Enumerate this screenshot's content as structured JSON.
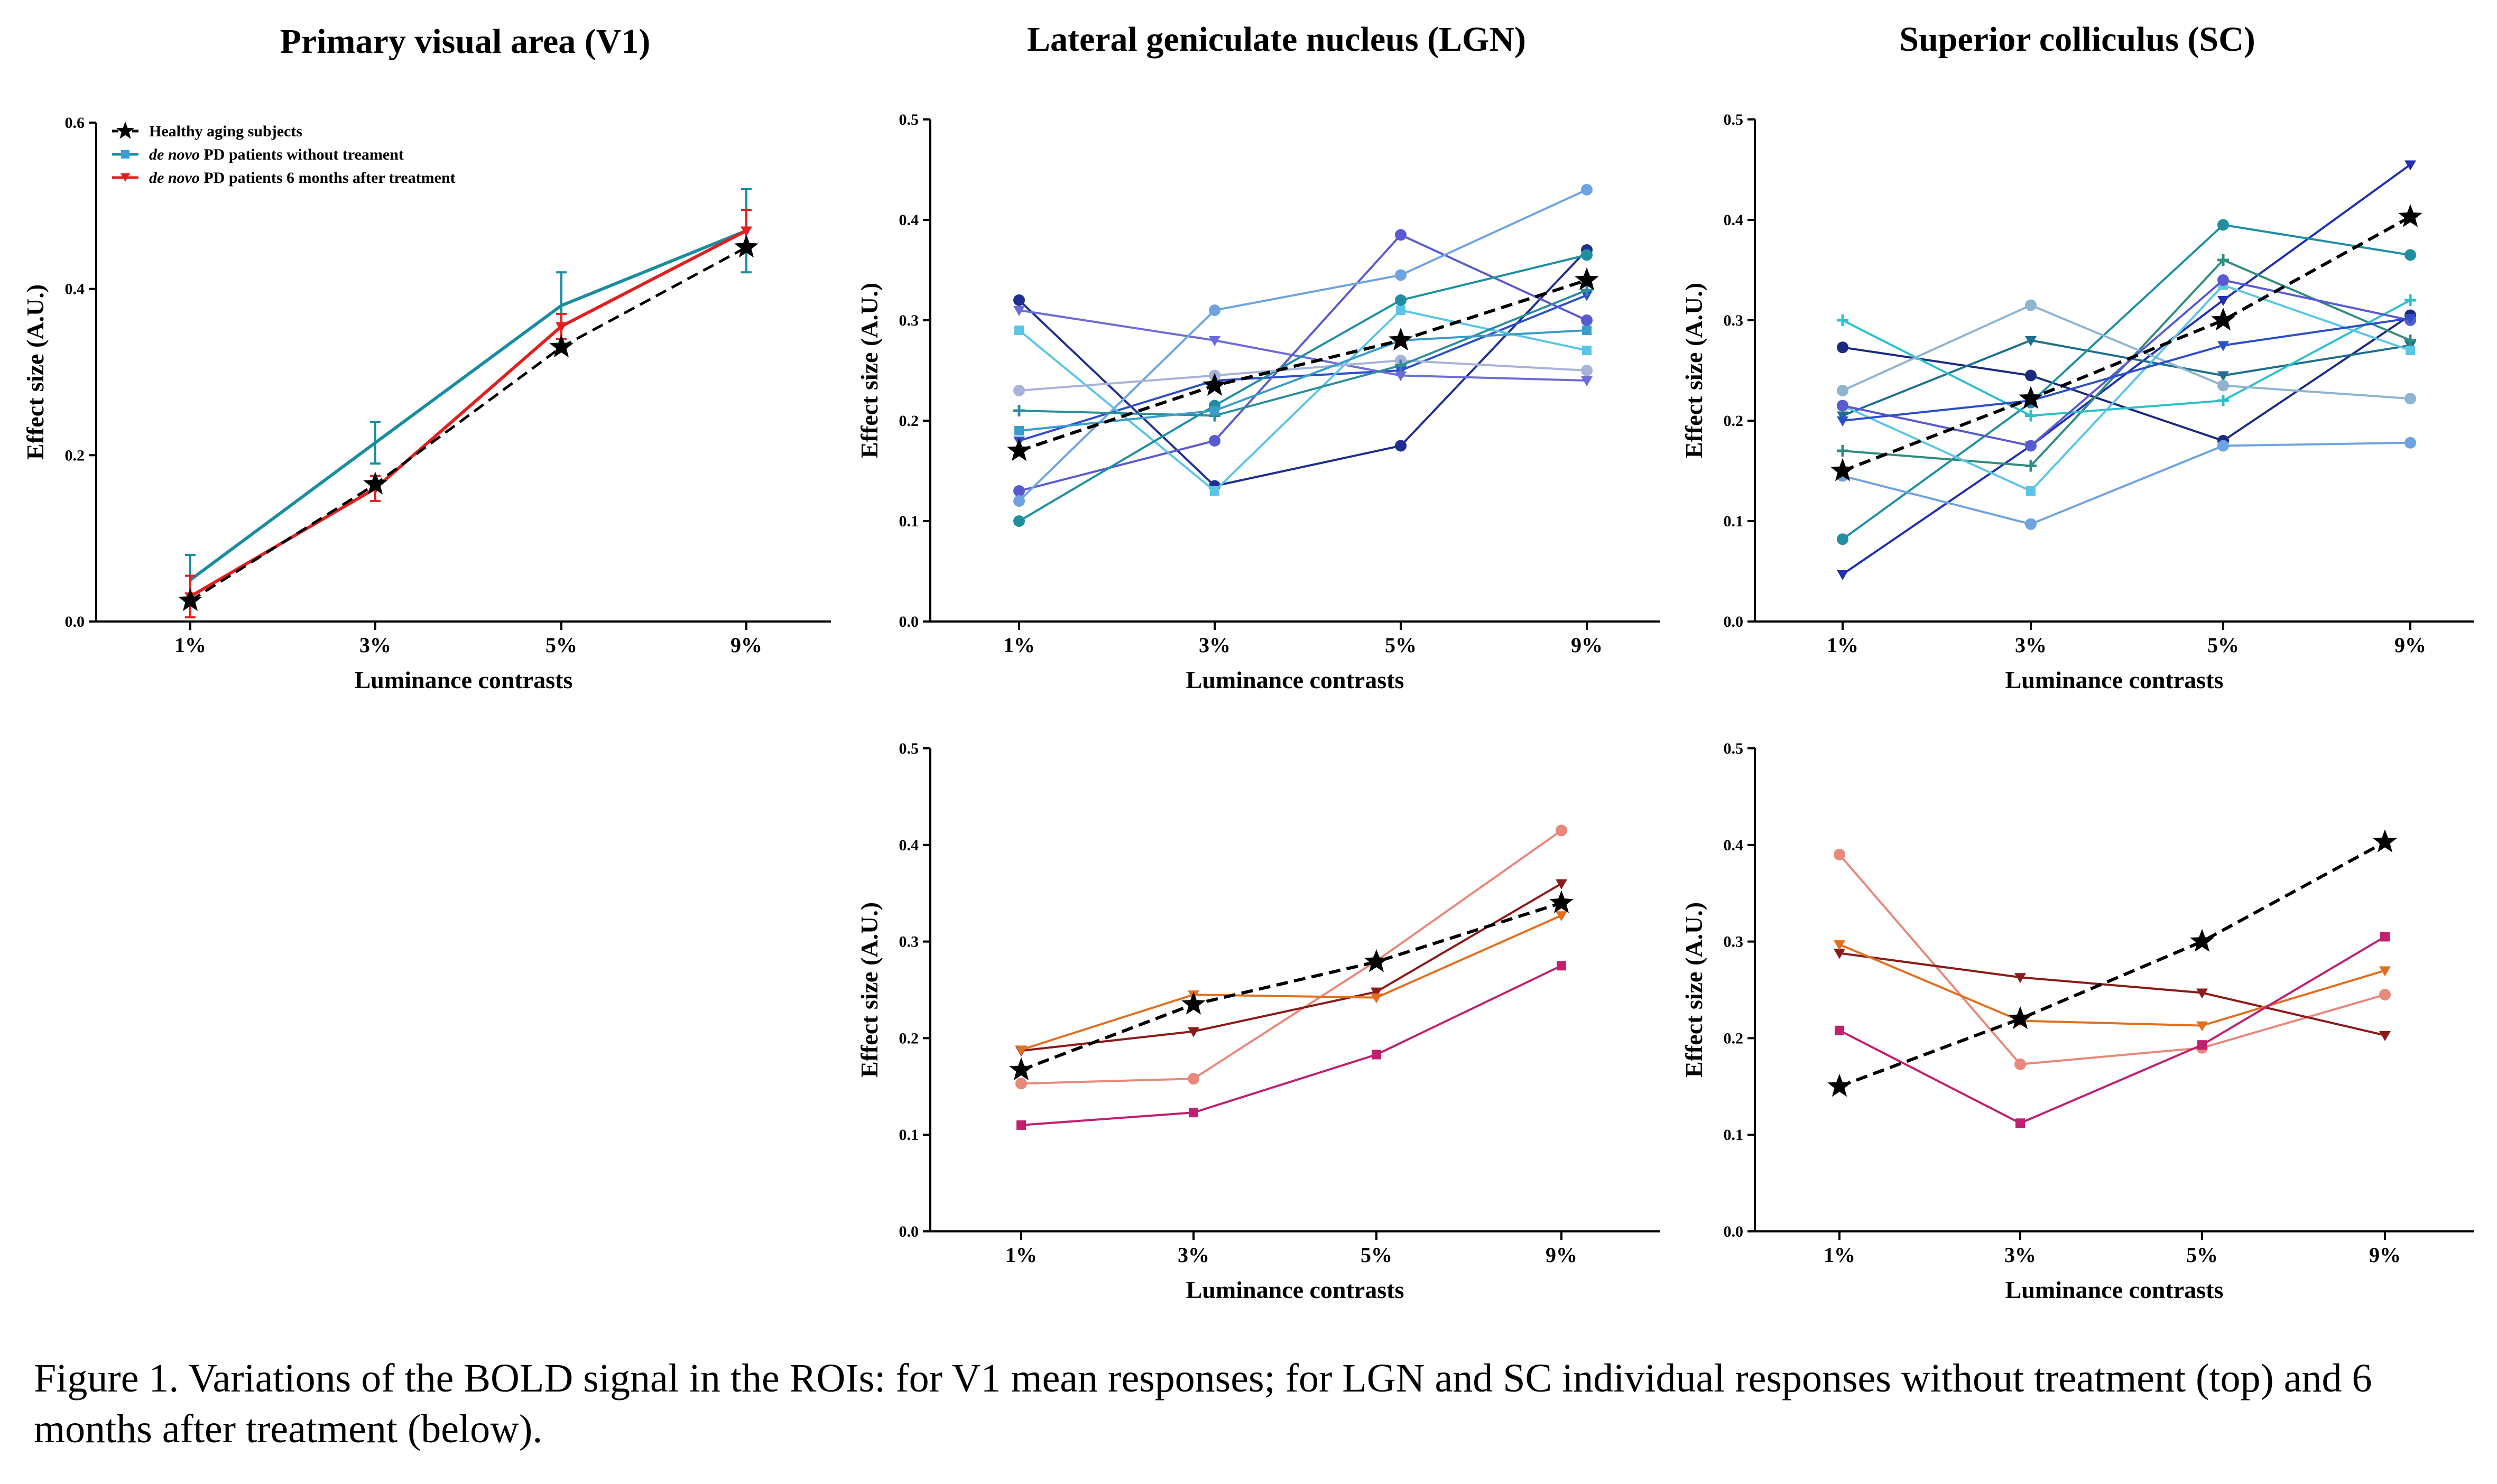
{
  "colors": {
    "axis": "#000000",
    "healthy": "#000000",
    "untreated": "#1a8ca0",
    "treated": "#e02020"
  },
  "figure_titles": {
    "v1": "Primary visual area (V1)",
    "lgn": "Lateral geniculate nucleus (LGN)",
    "sc": "Superior colliculus (SC)"
  },
  "legend": {
    "healthy": "Healthy aging subjects",
    "untreated_prefix": "de novo",
    "untreated_rest": " PD patients without treament",
    "treated_prefix": "de novo",
    "treated_rest": " PD patients 6 months after treatment"
  },
  "caption": "Figure 1. Variations of the BOLD signal in the ROIs: for V1 mean responses; for LGN and SC individual responses without treatment (top) and 6 months after treatment (below).",
  "chart_data": [
    {
      "id": "v1",
      "type": "line",
      "title": "Primary visual area (V1)",
      "xlabel": "Luminance contrasts",
      "ylabel": "Effect size (A.U.)",
      "categories": [
        "1%",
        "3%",
        "5%",
        "9%"
      ],
      "ylim": [
        0,
        0.6
      ],
      "yticks": [
        0.0,
        0.2,
        0.4,
        0.6
      ],
      "ytick_labels": [
        "0.0",
        "0.2",
        "0.4",
        "0.6"
      ],
      "legend_position": "top-left",
      "series": [
        {
          "name": "de novo PD patients without treament",
          "color": "#1a8ca0",
          "width": 6,
          "marker": "none",
          "values": [
            0.05,
            0.215,
            0.38,
            0.47
          ],
          "errors": [
            0.03,
            0.025,
            0.04,
            0.05
          ]
        },
        {
          "name": "de novo PD patients 6 months after treatment",
          "color": "#e02020",
          "width": 6,
          "marker": "tri",
          "values": [
            0.03,
            0.16,
            0.355,
            0.47
          ],
          "errors": [
            0.025,
            0.015,
            0.015,
            0.025
          ]
        },
        {
          "name": "Healthy aging subjects",
          "color": "#000000",
          "width": 5,
          "dash": true,
          "marker": "star",
          "values": [
            0.025,
            0.165,
            0.33,
            0.45
          ]
        }
      ]
    },
    {
      "id": "lgn-top",
      "type": "line",
      "xlabel": "Luminance contrasts",
      "ylabel": "Effect size (A.U.)",
      "categories": [
        "1%",
        "3%",
        "5%",
        "9%"
      ],
      "ylim": [
        0,
        0.5
      ],
      "yticks": [
        0.0,
        0.1,
        0.2,
        0.3,
        0.4,
        0.5
      ],
      "ytick_labels": [
        "0.0",
        "0.1",
        "0.2",
        "0.3",
        "0.4",
        "0.5"
      ],
      "series": [
        {
          "color": "#1f2f8f",
          "marker": "dot",
          "values": [
            0.32,
            0.135,
            0.175,
            0.37
          ]
        },
        {
          "color": "#2d4fc8",
          "marker": "tri",
          "values": [
            0.18,
            0.24,
            0.25,
            0.325
          ]
        },
        {
          "color": "#6c6cd8",
          "marker": "tri",
          "values": [
            0.31,
            0.28,
            0.245,
            0.24
          ]
        },
        {
          "color": "#5a5ad0",
          "marker": "dot",
          "values": [
            0.13,
            0.18,
            0.385,
            0.3
          ]
        },
        {
          "color": "#6fa3e0",
          "marker": "dot",
          "values": [
            0.12,
            0.31,
            0.345,
            0.43
          ]
        },
        {
          "color": "#5bc5e6",
          "marker": "sq",
          "values": [
            0.29,
            0.13,
            0.31,
            0.27
          ]
        },
        {
          "color": "#1f8fa0",
          "marker": "dot",
          "values": [
            0.1,
            0.215,
            0.32,
            0.365
          ]
        },
        {
          "color": "#a6b4d8",
          "marker": "dot",
          "values": [
            0.23,
            0.245,
            0.26,
            0.25
          ]
        },
        {
          "color": "#2d8c9c",
          "marker": "cross",
          "values": [
            0.21,
            0.205,
            0.255,
            0.33
          ]
        },
        {
          "color": "#3a9cc8",
          "marker": "sq",
          "values": [
            0.19,
            0.21,
            0.28,
            0.29
          ]
        },
        {
          "color": "#000000",
          "width": 6,
          "dash": true,
          "marker": "star",
          "values": [
            0.17,
            0.235,
            0.28,
            0.34
          ]
        }
      ]
    },
    {
      "id": "sc-top",
      "type": "line",
      "xlabel": "Luminance contrasts",
      "ylabel": "Effect size (A.U.)",
      "categories": [
        "1%",
        "3%",
        "5%",
        "9%"
      ],
      "ylim": [
        0,
        0.5
      ],
      "yticks": [
        0.0,
        0.1,
        0.2,
        0.3,
        0.4,
        0.5
      ],
      "ytick_labels": [
        "0.0",
        "0.1",
        "0.2",
        "0.3",
        "0.4",
        "0.5"
      ],
      "series": [
        {
          "color": "#1f2fb0",
          "marker": "tri",
          "values": [
            0.047,
            0.175,
            0.32,
            0.455
          ]
        },
        {
          "color": "#1a2a80",
          "marker": "dot",
          "values": [
            0.273,
            0.245,
            0.18,
            0.305
          ]
        },
        {
          "color": "#1f6f8c",
          "marker": "tri",
          "values": [
            0.205,
            0.28,
            0.245,
            0.275
          ]
        },
        {
          "color": "#1f8fa0",
          "marker": "dot",
          "values": [
            0.082,
            0.218,
            0.395,
            0.365
          ]
        },
        {
          "color": "#2f8c7f",
          "marker": "cross",
          "values": [
            0.17,
            0.155,
            0.36,
            0.28
          ]
        },
        {
          "color": "#6fa3e0",
          "marker": "dot",
          "values": [
            0.145,
            0.097,
            0.175,
            0.178
          ]
        },
        {
          "color": "#2dc0cc",
          "marker": "cross",
          "values": [
            0.3,
            0.205,
            0.22,
            0.32
          ]
        },
        {
          "color": "#8fb4d0",
          "marker": "dot",
          "values": [
            0.23,
            0.315,
            0.235,
            0.222
          ]
        },
        {
          "color": "#5bc5e6",
          "marker": "sq",
          "values": [
            0.215,
            0.13,
            0.335,
            0.27
          ]
        },
        {
          "color": "#5a5ad0",
          "marker": "dot",
          "values": [
            0.215,
            0.175,
            0.34,
            0.3
          ]
        },
        {
          "color": "#2d4fc8",
          "marker": "tri",
          "values": [
            0.2,
            0.22,
            0.275,
            0.302
          ]
        },
        {
          "color": "#000000",
          "width": 6,
          "dash": true,
          "marker": "star",
          "values": [
            0.15,
            0.222,
            0.3,
            0.403
          ]
        }
      ]
    },
    {
      "id": "lgn-bottom",
      "type": "line",
      "xlabel": "Luminance contrasts",
      "ylabel": "Effect size (A.U.)",
      "categories": [
        "1%",
        "3%",
        "5%",
        "9%"
      ],
      "ylim": [
        0,
        0.5
      ],
      "yticks": [
        0.0,
        0.1,
        0.2,
        0.3,
        0.4,
        0.5
      ],
      "ytick_labels": [
        "0.0",
        "0.1",
        "0.2",
        "0.3",
        "0.4",
        "0.5"
      ],
      "series": [
        {
          "color": "#e8887a",
          "marker": "dot",
          "values": [
            0.153,
            0.158,
            0.28,
            0.415
          ]
        },
        {
          "color": "#8b1a1a",
          "marker": "tri",
          "values": [
            0.187,
            0.207,
            0.248,
            0.36
          ]
        },
        {
          "color": "#e07020",
          "marker": "tri",
          "values": [
            0.188,
            0.245,
            0.242,
            0.327
          ]
        },
        {
          "color": "#c0206e",
          "marker": "sq",
          "values": [
            0.11,
            0.123,
            0.183,
            0.275
          ]
        },
        {
          "color": "#000000",
          "width": 6,
          "dash": true,
          "marker": "star",
          "values": [
            0.167,
            0.235,
            0.279,
            0.34
          ]
        }
      ]
    },
    {
      "id": "sc-bottom",
      "type": "line",
      "xlabel": "Luminance contrasts",
      "ylabel": "Effect size (A.U.)",
      "categories": [
        "1%",
        "3%",
        "5%",
        "9%"
      ],
      "ylim": [
        0,
        0.5
      ],
      "yticks": [
        0.0,
        0.1,
        0.2,
        0.3,
        0.4,
        0.5
      ],
      "ytick_labels": [
        "0.0",
        "0.1",
        "0.2",
        "0.3",
        "0.4",
        "0.5"
      ],
      "series": [
        {
          "color": "#e8887a",
          "marker": "dot",
          "values": [
            0.39,
            0.173,
            0.19,
            0.245
          ]
        },
        {
          "color": "#8b1a1a",
          "marker": "tri",
          "values": [
            0.288,
            0.263,
            0.247,
            0.203
          ]
        },
        {
          "color": "#e07020",
          "marker": "tri",
          "values": [
            0.297,
            0.218,
            0.213,
            0.27
          ]
        },
        {
          "color": "#c0206e",
          "marker": "sq",
          "values": [
            0.208,
            0.112,
            0.193,
            0.305
          ]
        },
        {
          "color": "#000000",
          "width": 6,
          "dash": true,
          "marker": "star",
          "values": [
            0.15,
            0.22,
            0.3,
            0.403
          ]
        }
      ]
    }
  ]
}
